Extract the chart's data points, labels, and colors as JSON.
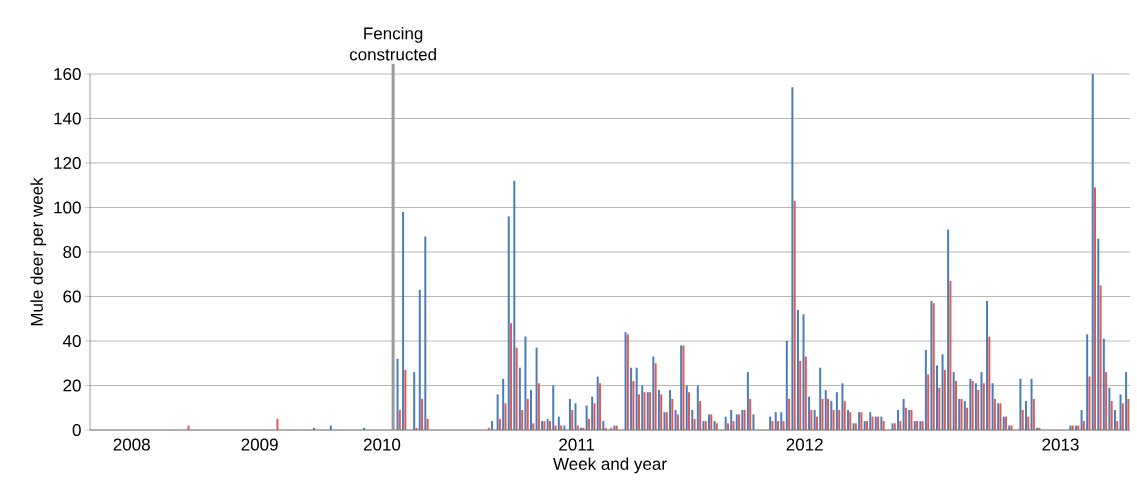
{
  "chart_data": {
    "type": "bar",
    "xlabel": "Week and year",
    "ylabel": "Mule deer per week",
    "categories": [
      null,
      null,
      null,
      null,
      null,
      null,
      null,
      "2008",
      null,
      null,
      null,
      null,
      null,
      null,
      null,
      null,
      null,
      null,
      null,
      null,
      null,
      null,
      null,
      null,
      null,
      null,
      null,
      null,
      null,
      null,
      "2009",
      null,
      null,
      null,
      null,
      null,
      null,
      null,
      null,
      null,
      null,
      null,
      null,
      null,
      null,
      null,
      null,
      null,
      null,
      null,
      null,
      null,
      "2010",
      null,
      null,
      null,
      null,
      null,
      null,
      null,
      null,
      null,
      null,
      null,
      null,
      null,
      null,
      null,
      null,
      null,
      null,
      null,
      null,
      null,
      null,
      null,
      null,
      null,
      null,
      null,
      null,
      null,
      null,
      null,
      null,
      null,
      null,
      "2011",
      null,
      null,
      null,
      null,
      null,
      null,
      null,
      null,
      null,
      null,
      null,
      null,
      null,
      null,
      null,
      null,
      null,
      null,
      null,
      null,
      null,
      null,
      null,
      null,
      null,
      null,
      null,
      null,
      null,
      null,
      null,
      null,
      null,
      null,
      null,
      null,
      null,
      null,
      null,
      null,
      "2012",
      null,
      null,
      null,
      null,
      null,
      null,
      null,
      null,
      null,
      null,
      null,
      null,
      null,
      null,
      null,
      null,
      null,
      null,
      null,
      null,
      null,
      null,
      null,
      null,
      null,
      null,
      null,
      null,
      null,
      null,
      null,
      null,
      null,
      null,
      null,
      null,
      null,
      null,
      null,
      null,
      null,
      null,
      null,
      null,
      null,
      "2013",
      null,
      null,
      null,
      null,
      null,
      null,
      null,
      null,
      null,
      null,
      null,
      null
    ],
    "series": [
      {
        "color": "#4a7db8",
        "values": [
          0,
          0,
          0,
          0,
          0,
          0,
          0,
          0,
          0,
          0,
          0,
          0,
          0,
          0,
          0,
          0,
          0,
          0,
          0,
          0,
          0,
          0,
          0,
          0,
          0,
          0,
          0,
          0,
          0,
          0,
          0,
          0,
          0,
          0,
          0,
          0,
          0,
          0,
          0,
          0,
          1,
          0,
          0,
          2,
          0,
          0,
          0,
          0,
          0,
          1,
          0,
          0,
          0,
          0,
          0,
          32,
          98,
          0,
          26,
          63,
          87,
          0,
          0,
          0,
          0,
          0,
          0,
          0,
          0,
          0,
          0,
          0,
          4,
          16,
          23,
          96,
          112,
          28,
          42,
          18,
          37,
          4,
          5,
          20,
          6,
          2,
          14,
          12,
          1,
          11,
          15,
          24,
          4,
          0,
          2,
          0,
          44,
          28,
          28,
          20,
          17,
          33,
          18,
          8,
          18,
          9,
          38,
          20,
          9,
          20,
          4,
          7,
          4,
          0,
          6,
          9,
          7,
          9,
          26,
          7,
          0,
          0,
          6,
          8,
          8,
          40,
          154,
          54,
          52,
          15,
          9,
          28,
          18,
          13,
          17,
          21,
          9,
          3,
          8,
          4,
          8,
          6,
          6,
          0,
          3,
          9,
          14,
          9,
          4,
          4,
          36,
          58,
          29,
          34,
          90,
          26,
          14,
          13,
          23,
          21,
          26,
          58,
          21,
          12,
          6,
          2,
          0,
          23,
          13,
          23,
          1,
          0,
          0,
          0,
          0,
          0,
          2,
          2,
          9,
          43,
          160,
          86,
          41,
          19,
          9,
          16,
          26
        ]
      },
      {
        "color": "#dc5b57",
        "values": [
          0,
          0,
          0,
          0,
          0,
          0,
          0,
          0,
          0,
          0,
          0,
          0,
          0,
          0,
          0,
          0,
          0,
          2,
          0,
          0,
          0,
          0,
          0,
          0,
          0,
          0,
          0,
          0,
          0,
          0,
          0,
          0,
          0,
          5,
          0,
          0,
          0,
          0,
          0,
          0,
          0,
          0,
          0,
          0,
          0,
          0,
          0,
          0,
          0,
          0,
          0,
          0,
          0,
          0,
          0,
          9,
          27,
          0,
          1,
          14,
          5,
          0,
          0,
          0,
          0,
          0,
          0,
          0,
          0,
          0,
          0,
          1,
          0,
          5,
          12,
          48,
          37,
          9,
          14,
          3,
          21,
          4,
          4,
          2,
          2,
          0,
          9,
          2,
          1,
          5,
          12,
          21,
          1,
          1,
          2,
          0,
          43,
          22,
          16,
          17,
          17,
          30,
          16,
          8,
          14,
          7,
          38,
          17,
          5,
          13,
          4,
          7,
          3,
          0,
          3,
          4,
          7,
          9,
          14,
          0,
          0,
          0,
          4,
          4,
          4,
          14,
          103,
          31,
          33,
          9,
          6,
          14,
          14,
          9,
          9,
          13,
          8,
          3,
          8,
          4,
          6,
          6,
          4,
          0,
          3,
          4,
          10,
          9,
          4,
          4,
          25,
          57,
          19,
          27,
          67,
          22,
          14,
          10,
          22,
          18,
          21,
          42,
          14,
          12,
          6,
          2,
          0,
          9,
          6,
          14,
          1,
          0,
          0,
          0,
          0,
          0,
          2,
          2,
          4,
          24,
          109,
          65,
          26,
          13,
          4,
          12,
          14
        ]
      }
    ],
    "ylim": [
      0,
      160
    ],
    "yticks": [
      0,
      20,
      40,
      60,
      80,
      100,
      120,
      140,
      160
    ],
    "grid": "y",
    "annotations": [
      "Fencing constructed"
    ]
  }
}
